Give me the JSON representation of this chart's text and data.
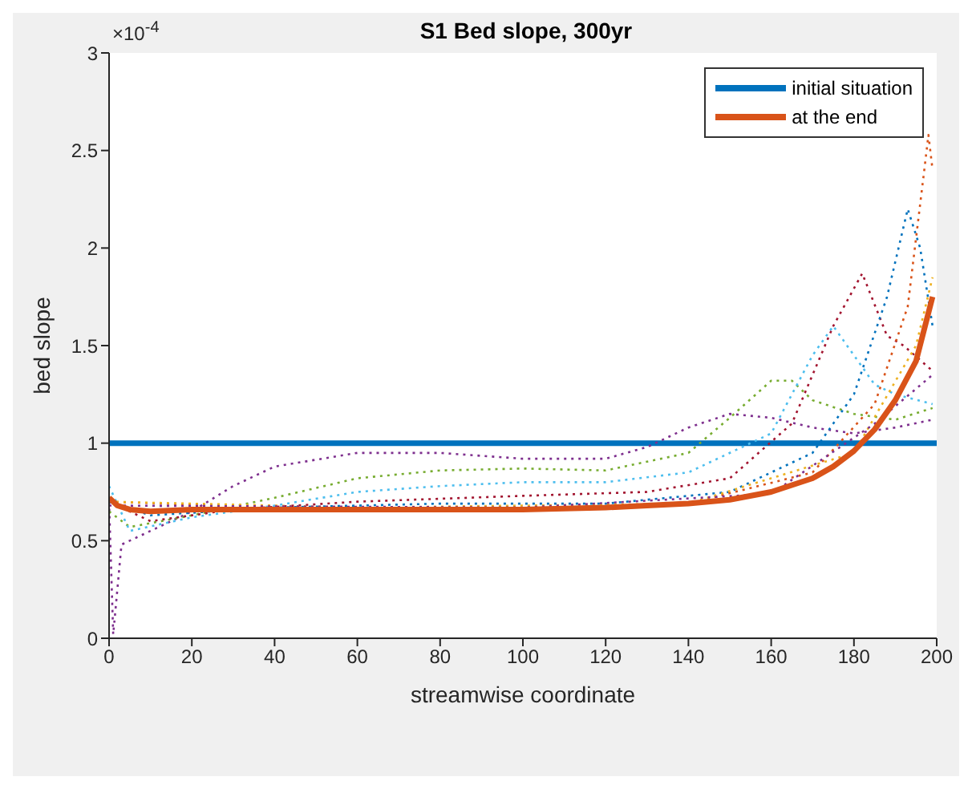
{
  "chart_data": {
    "type": "line",
    "title": "S1 Bed slope, 300yr",
    "xlabel": "streamwise coordinate",
    "ylabel": "bed slope",
    "annotations": [
      "×10$^{-4}$"
    ],
    "xlim": [
      0,
      200
    ],
    "xticks": [
      0,
      20,
      40,
      60,
      80,
      100,
      120,
      140,
      160,
      180,
      200
    ],
    "ylim": [
      0,
      3
    ],
    "yticks": [
      0,
      0.5,
      1,
      1.5,
      2,
      2.5,
      3
    ],
    "legend": "top right",
    "grid": false,
    "line_style": "solid",
    "series": [
      {
        "name": "initial situation",
        "color": "#0072bd",
        "x": [
          0,
          50,
          100,
          150,
          200
        ],
        "values": [
          1,
          1,
          1,
          1,
          1
        ]
      },
      {
        "color": "#7e2f8e",
        "line_style": "dotted",
        "x": [
          0,
          1,
          3,
          10,
          20,
          30,
          40,
          60,
          80,
          100,
          120,
          130,
          140,
          150,
          160,
          170,
          180,
          190,
          199
        ],
        "values": [
          0.7,
          0.02,
          0.48,
          0.55,
          0.65,
          0.78,
          0.88,
          0.95,
          0.95,
          0.92,
          0.92,
          0.98,
          1.08,
          1.15,
          1.13,
          1.08,
          1.05,
          1.08,
          1.12
        ]
      },
      {
        "color": "#77ac30",
        "line_style": "dotted",
        "x": [
          0,
          5,
          20,
          40,
          60,
          80,
          100,
          120,
          140,
          150,
          160,
          165,
          170,
          180,
          190,
          199
        ],
        "values": [
          0.65,
          0.57,
          0.63,
          0.72,
          0.82,
          0.86,
          0.87,
          0.86,
          0.95,
          1.13,
          1.32,
          1.32,
          1.22,
          1.15,
          1.12,
          1.18
        ]
      },
      {
        "color": "#4dbeee",
        "line_style": "dotted",
        "x": [
          0,
          5,
          20,
          40,
          60,
          80,
          100,
          120,
          140,
          160,
          170,
          175,
          180,
          185,
          190,
          199
        ],
        "values": [
          0.78,
          0.55,
          0.62,
          0.68,
          0.75,
          0.78,
          0.8,
          0.8,
          0.85,
          1.05,
          1.45,
          1.6,
          1.45,
          1.3,
          1.25,
          1.2
        ]
      },
      {
        "color": "#a2142f",
        "line_style": "dotted",
        "x": [
          0,
          10,
          30,
          60,
          100,
          130,
          150,
          165,
          175,
          182,
          188,
          192,
          199
        ],
        "values": [
          0.7,
          0.6,
          0.66,
          0.7,
          0.73,
          0.75,
          0.82,
          1.1,
          1.6,
          1.87,
          1.55,
          1.5,
          1.37
        ]
      },
      {
        "color": "#0072bd",
        "line_style": "dotted",
        "x": [
          0,
          10,
          40,
          80,
          120,
          150,
          170,
          180,
          188,
          193,
          196,
          199
        ],
        "values": [
          0.7,
          0.63,
          0.67,
          0.69,
          0.69,
          0.75,
          0.95,
          1.25,
          1.75,
          2.2,
          2.0,
          1.6
        ]
      },
      {
        "color": "#d95319",
        "line_style": "dotted",
        "x": [
          0,
          40,
          100,
          140,
          170,
          185,
          193,
          197,
          198,
          199
        ],
        "values": [
          0.7,
          0.67,
          0.67,
          0.69,
          0.85,
          1.2,
          1.7,
          2.4,
          2.58,
          2.4
        ]
      },
      {
        "color": "#edb120",
        "line_style": "dotted",
        "x": [
          0,
          60,
          140,
          180,
          195,
          199
        ],
        "values": [
          0.7,
          0.67,
          0.69,
          0.95,
          1.5,
          1.85
        ]
      },
      {
        "color": "#7e2f8e",
        "line_style": "dotted",
        "x": [
          0,
          100,
          160,
          185,
          199
        ],
        "values": [
          0.68,
          0.67,
          0.74,
          1.1,
          1.35
        ]
      },
      {
        "name": "at the end",
        "color": "#d95319",
        "x": [
          0,
          2,
          5,
          10,
          20,
          40,
          60,
          80,
          100,
          120,
          130,
          140,
          150,
          160,
          170,
          175,
          180,
          185,
          190,
          195,
          199
        ],
        "values": [
          0.72,
          0.68,
          0.66,
          0.65,
          0.66,
          0.66,
          0.66,
          0.66,
          0.66,
          0.67,
          0.68,
          0.69,
          0.71,
          0.75,
          0.82,
          0.88,
          0.96,
          1.07,
          1.22,
          1.42,
          1.75
        ]
      }
    ]
  }
}
